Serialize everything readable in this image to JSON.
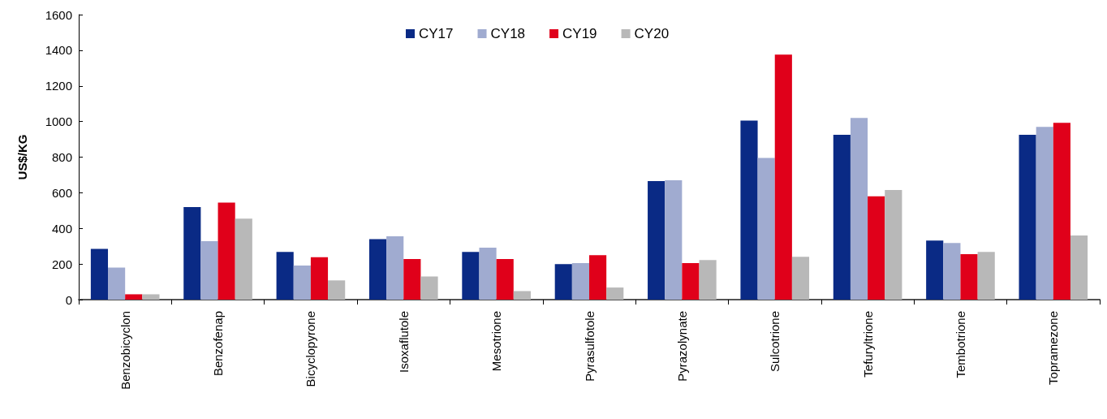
{
  "chart_data": {
    "type": "bar",
    "ylabel": "US$/KG",
    "categories": [
      "Benzobicyclon",
      "Benzofenap",
      "Bicyclopyrone",
      "Isoxaflutole",
      "Mesotrione",
      "Pyrasulfotole",
      "Pyrazolynate",
      "Sulcotrione",
      "Tefuryltrione",
      "Tembotrione",
      "Topramezone"
    ],
    "series": [
      {
        "name": "CY17",
        "color": "#0a2a85",
        "values": [
          285,
          520,
          268,
          340,
          268,
          200,
          665,
          1005,
          925,
          332,
          925
        ]
      },
      {
        "name": "CY18",
        "color": "#a0abd0",
        "values": [
          180,
          328,
          192,
          355,
          292,
          205,
          670,
          795,
          1020,
          318,
          970
        ]
      },
      {
        "name": "CY19",
        "color": "#e0001a",
        "values": [
          30,
          545,
          238,
          228,
          228,
          250,
          205,
          1375,
          580,
          255,
          993
        ]
      },
      {
        "name": "CY20",
        "color": "#b8b8b8",
        "values": [
          30,
          455,
          108,
          130,
          48,
          68,
          222,
          240,
          615,
          268,
          360
        ]
      }
    ],
    "ylim": [
      0,
      1600
    ],
    "yticks": [
      0,
      200,
      400,
      600,
      800,
      1000,
      1200,
      1400,
      1600
    ],
    "grid": false,
    "legend": "top"
  }
}
